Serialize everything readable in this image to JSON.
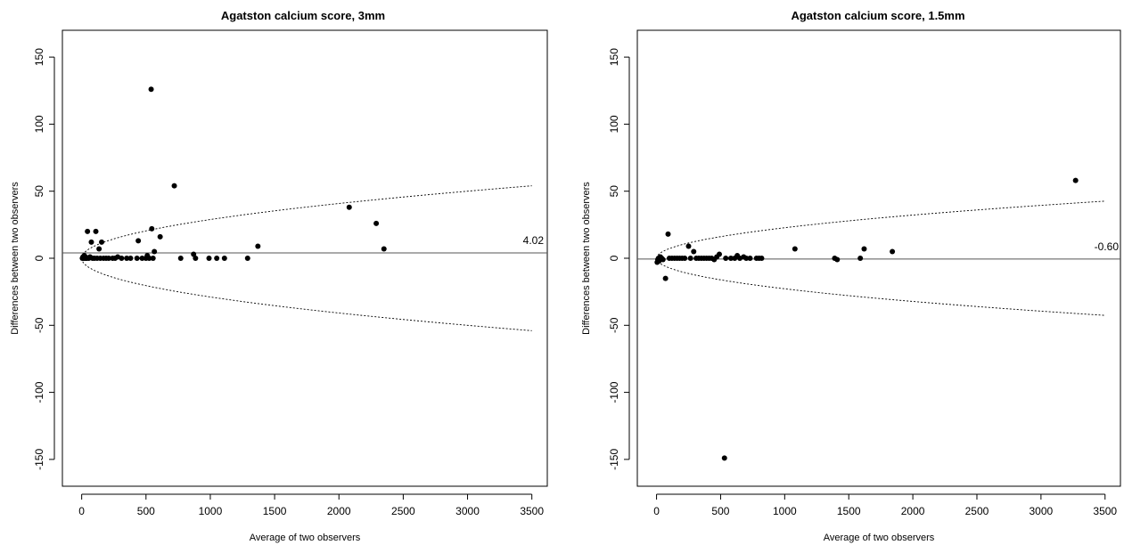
{
  "chart_data": [
    {
      "type": "scatter",
      "title": "Agatston calcium score, 3mm",
      "xlabel": "Average of two observers",
      "ylabel": "Differences between two observers",
      "xlim": [
        -150,
        3620
      ],
      "ylim": [
        -170,
        170
      ],
      "xticks": [
        0,
        500,
        1000,
        1500,
        2000,
        2500,
        3000,
        3500
      ],
      "yticks": [
        -150,
        -100,
        -50,
        0,
        50,
        100,
        150
      ],
      "mean_difference": 4.02,
      "mean_label": "4.02",
      "limit_curve_coefficient": 0.913,
      "limit_curve_xmax": 3500,
      "points": [
        {
          "x": 5,
          "y": 0
        },
        {
          "x": 10,
          "y": 1
        },
        {
          "x": 15,
          "y": 0
        },
        {
          "x": 20,
          "y": 2
        },
        {
          "x": 25,
          "y": 0
        },
        {
          "x": 30,
          "y": 1
        },
        {
          "x": 35,
          "y": 0
        },
        {
          "x": 40,
          "y": 0
        },
        {
          "x": 45,
          "y": 20
        },
        {
          "x": 55,
          "y": 0
        },
        {
          "x": 65,
          "y": 1
        },
        {
          "x": 75,
          "y": 12
        },
        {
          "x": 85,
          "y": 0
        },
        {
          "x": 100,
          "y": 0
        },
        {
          "x": 110,
          "y": 20
        },
        {
          "x": 120,
          "y": 0
        },
        {
          "x": 135,
          "y": 7
        },
        {
          "x": 145,
          "y": 0
        },
        {
          "x": 155,
          "y": 12
        },
        {
          "x": 170,
          "y": 0
        },
        {
          "x": 190,
          "y": 0
        },
        {
          "x": 210,
          "y": 0
        },
        {
          "x": 240,
          "y": 0
        },
        {
          "x": 260,
          "y": 0
        },
        {
          "x": 280,
          "y": 1
        },
        {
          "x": 310,
          "y": 0
        },
        {
          "x": 350,
          "y": 0
        },
        {
          "x": 380,
          "y": 0
        },
        {
          "x": 430,
          "y": 0
        },
        {
          "x": 440,
          "y": 13
        },
        {
          "x": 470,
          "y": 0
        },
        {
          "x": 500,
          "y": 0
        },
        {
          "x": 510,
          "y": 2
        },
        {
          "x": 525,
          "y": 0
        },
        {
          "x": 540,
          "y": 126
        },
        {
          "x": 545,
          "y": 22
        },
        {
          "x": 555,
          "y": 0
        },
        {
          "x": 565,
          "y": 5
        },
        {
          "x": 610,
          "y": 16
        },
        {
          "x": 720,
          "y": 54
        },
        {
          "x": 770,
          "y": 0
        },
        {
          "x": 870,
          "y": 3
        },
        {
          "x": 885,
          "y": 0
        },
        {
          "x": 990,
          "y": 0
        },
        {
          "x": 1050,
          "y": 0
        },
        {
          "x": 1110,
          "y": 0
        },
        {
          "x": 1290,
          "y": 0
        },
        {
          "x": 1370,
          "y": 9
        },
        {
          "x": 2080,
          "y": 38
        },
        {
          "x": 2290,
          "y": 26
        },
        {
          "x": 2350,
          "y": 7
        }
      ]
    },
    {
      "type": "scatter",
      "title": "Agatston calcium score, 1.5mm",
      "xlabel": "Average of two observers",
      "ylabel": "Differences between two observers",
      "xlim": [
        -150,
        3620
      ],
      "ylim": [
        -170,
        170
      ],
      "xticks": [
        0,
        500,
        1000,
        1500,
        2000,
        2500,
        3000,
        3500
      ],
      "yticks": [
        -150,
        -100,
        -50,
        0,
        50,
        100,
        150
      ],
      "mean_difference": -0.6,
      "mean_label": "-0.60",
      "limit_curve_coefficient": 0.72,
      "limit_curve_xmax": 3500,
      "points": [
        {
          "x": 5,
          "y": -3
        },
        {
          "x": 10,
          "y": -1
        },
        {
          "x": 15,
          "y": 0
        },
        {
          "x": 20,
          "y": -2
        },
        {
          "x": 25,
          "y": 0
        },
        {
          "x": 30,
          "y": 1
        },
        {
          "x": 40,
          "y": 0
        },
        {
          "x": 50,
          "y": -1
        },
        {
          "x": 70,
          "y": -15
        },
        {
          "x": 90,
          "y": 18
        },
        {
          "x": 100,
          "y": 0
        },
        {
          "x": 120,
          "y": 0
        },
        {
          "x": 140,
          "y": 0
        },
        {
          "x": 160,
          "y": 0
        },
        {
          "x": 180,
          "y": 0
        },
        {
          "x": 200,
          "y": 0
        },
        {
          "x": 220,
          "y": 0
        },
        {
          "x": 250,
          "y": 9
        },
        {
          "x": 265,
          "y": 0
        },
        {
          "x": 290,
          "y": 5
        },
        {
          "x": 310,
          "y": 0
        },
        {
          "x": 330,
          "y": 0
        },
        {
          "x": 350,
          "y": 0
        },
        {
          "x": 370,
          "y": 0
        },
        {
          "x": 390,
          "y": 0
        },
        {
          "x": 410,
          "y": 0
        },
        {
          "x": 430,
          "y": 0
        },
        {
          "x": 450,
          "y": -1
        },
        {
          "x": 470,
          "y": 1
        },
        {
          "x": 490,
          "y": 3
        },
        {
          "x": 530,
          "y": -149
        },
        {
          "x": 540,
          "y": 0
        },
        {
          "x": 580,
          "y": 0
        },
        {
          "x": 610,
          "y": 0
        },
        {
          "x": 630,
          "y": 2
        },
        {
          "x": 650,
          "y": 0
        },
        {
          "x": 680,
          "y": 1
        },
        {
          "x": 700,
          "y": 0
        },
        {
          "x": 730,
          "y": 0
        },
        {
          "x": 780,
          "y": 0
        },
        {
          "x": 800,
          "y": 0
        },
        {
          "x": 820,
          "y": 0
        },
        {
          "x": 1080,
          "y": 7
        },
        {
          "x": 1390,
          "y": 0
        },
        {
          "x": 1410,
          "y": -1
        },
        {
          "x": 1590,
          "y": 0
        },
        {
          "x": 1620,
          "y": 7
        },
        {
          "x": 1840,
          "y": 5
        },
        {
          "x": 3270,
          "y": 58
        }
      ]
    }
  ]
}
